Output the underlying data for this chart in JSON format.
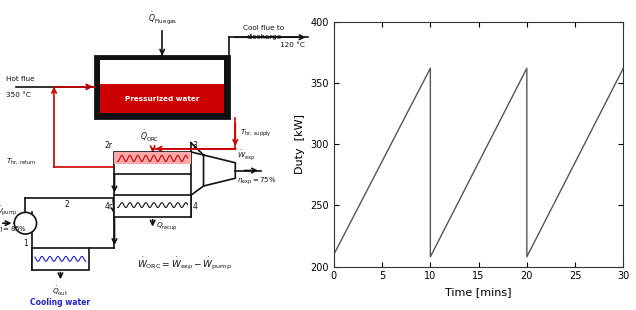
{
  "figure_width": 6.36,
  "figure_height": 3.1,
  "dpi": 100,
  "plot_xlim": [
    0,
    30
  ],
  "plot_ylim": [
    200,
    400
  ],
  "plot_xlabel": "Time [mins]",
  "plot_ylabel": "Duty  [kW]",
  "plot_xticks": [
    0,
    5,
    10,
    15,
    20,
    25,
    30
  ],
  "plot_yticks": [
    200,
    250,
    300,
    350,
    400
  ],
  "sawtooth_x": [
    0,
    10,
    10,
    20,
    20,
    30
  ],
  "sawtooth_y": [
    210,
    362,
    208,
    362,
    208,
    362
  ],
  "line_color": "#555555",
  "line_width": 1.0,
  "red_pipe_color": "#cc0000",
  "blue_text_color": "#2222cc",
  "black_text_color": "#111111",
  "tank_fill_color": "#cc0000",
  "tank_border_color": "#111111"
}
